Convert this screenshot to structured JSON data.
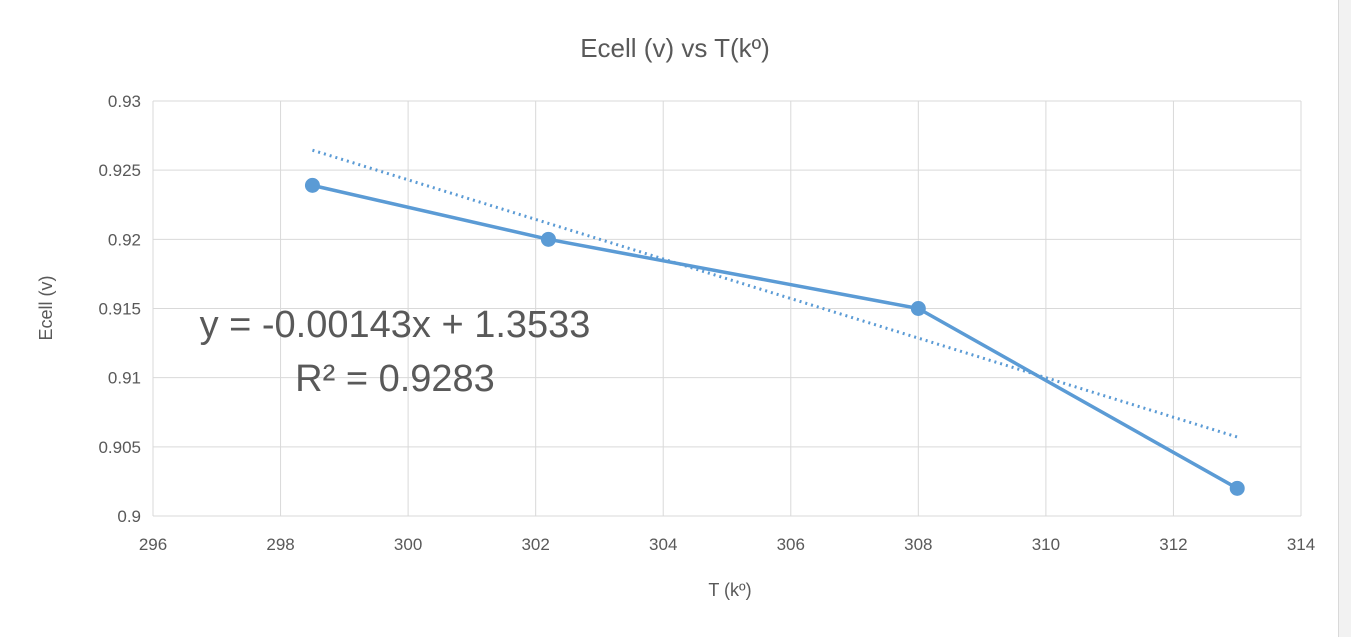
{
  "chart_data": {
    "type": "line",
    "title": "Ecell (v) vs T(kº)",
    "xlabel": "T (kº)",
    "ylabel": "Ecell (v)",
    "xlim": [
      296,
      314
    ],
    "ylim": [
      0.9,
      0.93
    ],
    "x_ticks": [
      "296",
      "298",
      "300",
      "302",
      "304",
      "306",
      "308",
      "310",
      "312",
      "314"
    ],
    "y_ticks": [
      "0.9",
      "0.905",
      "0.91",
      "0.915",
      "0.92",
      "0.925",
      "0.93"
    ],
    "grid": true,
    "legend": "none",
    "series": [
      {
        "x": [
          298.5,
          302.2,
          308,
          313
        ],
        "y": [
          0.9239,
          0.92,
          0.915,
          0.902
        ],
        "color": "#5B9BD5",
        "marker": "circle"
      }
    ],
    "trendline": {
      "type": "linear",
      "slope": -0.00143,
      "intercept": 1.3533,
      "x_range": [
        298.5,
        313
      ],
      "style": "dotted",
      "color": "#5B9BD5",
      "equation_text": "y = -0.00143x + 1.3533",
      "r2_text": "R² = 0.9283"
    }
  }
}
